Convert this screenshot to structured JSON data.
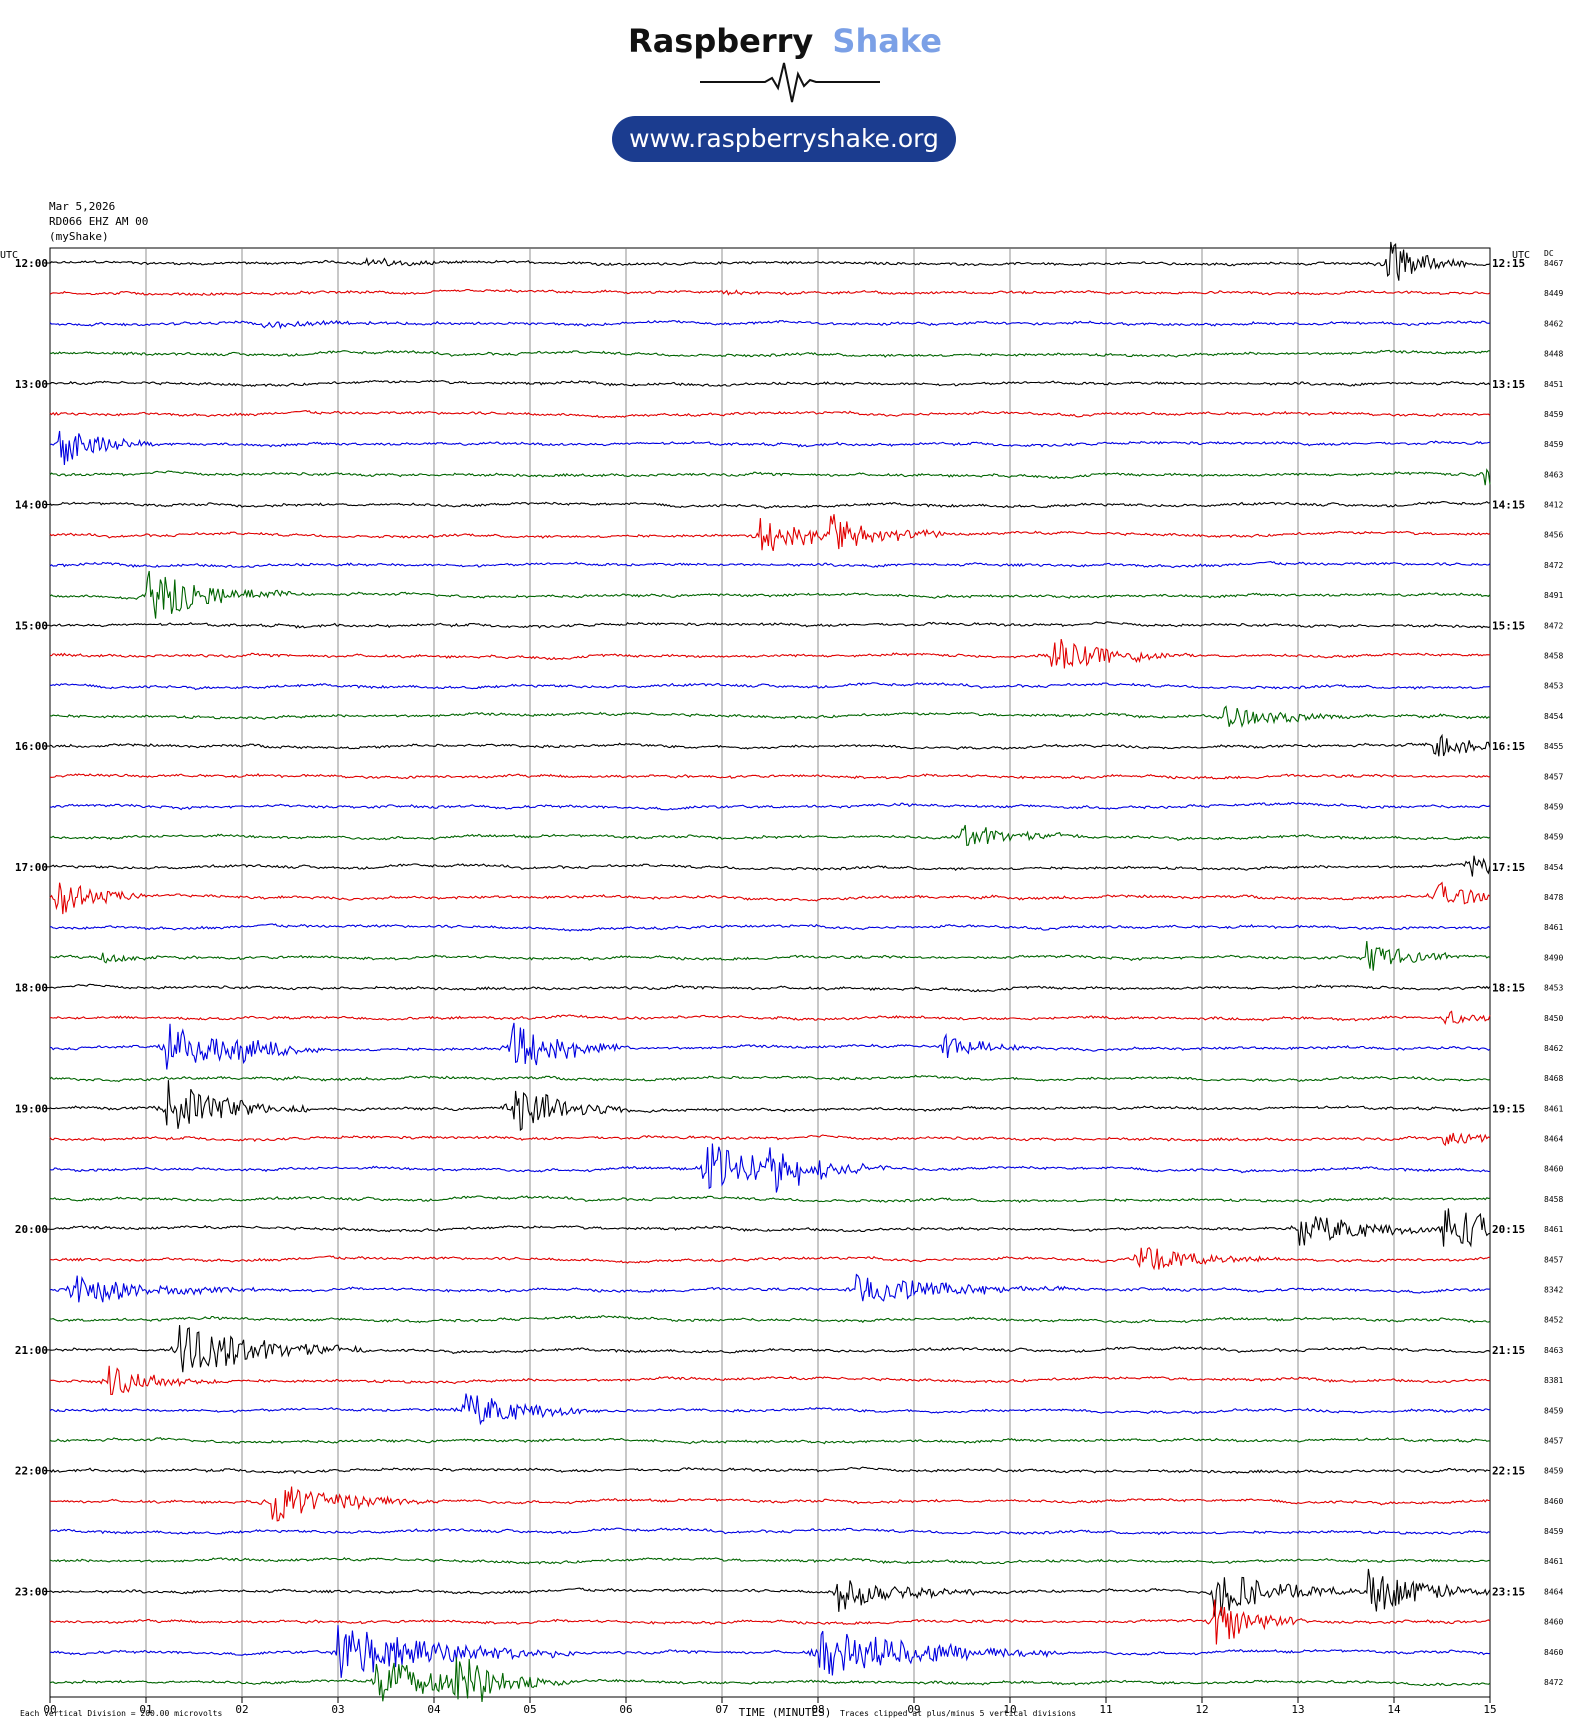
{
  "header": {
    "brand_left": "Raspberry",
    "brand_right": "Shake",
    "url": "www.raspberryshake.org",
    "date": "Mar 5,2026",
    "station": "RD066 EHZ AM 00",
    "network": "(myShake)"
  },
  "colors": {
    "brand_dark": "#111111",
    "brand_light": "#7ba0e6",
    "pill": "#1b3c8f",
    "traces": [
      "#000000",
      "#e00000",
      "#0000e0",
      "#006400"
    ]
  },
  "chart_data": {
    "type": "line",
    "title": "",
    "xlabel": "TIME (MINUTES)",
    "ylabel": "",
    "left_axis_title": "UTC",
    "right_axis_title": "UTC",
    "dc_title": "DC",
    "x_ticks": [
      "00",
      "01",
      "02",
      "03",
      "04",
      "05",
      "06",
      "07",
      "08",
      "09",
      "10",
      "11",
      "12",
      "13",
      "14",
      "15"
    ],
    "xlim": [
      0,
      15
    ],
    "left_hour_labels": [
      "12:00",
      "13:00",
      "14:00",
      "15:00",
      "16:00",
      "17:00",
      "18:00",
      "19:00",
      "20:00",
      "21:00",
      "22:00",
      "23:00"
    ],
    "right_hour_labels": [
      "12:15",
      "13:15",
      "14:15",
      "15:15",
      "16:15",
      "17:15",
      "18:15",
      "19:15",
      "20:15",
      "21:15",
      "22:15",
      "23:15"
    ],
    "dc_offsets": [
      "8467",
      "8449",
      "8462",
      "8448",
      "8451",
      "8459",
      "8459",
      "8463",
      "8412",
      "8456",
      "8472",
      "8491",
      "8472",
      "8458",
      "8453",
      "8454",
      "8455",
      "8457",
      "8459",
      "8459",
      "8454",
      "8478",
      "8461",
      "8490",
      "8453",
      "8450",
      "8462",
      "8468",
      "8461",
      "8464",
      "8460",
      "8458",
      "8461",
      "8457",
      "8342",
      "8452",
      "8463",
      "8381",
      "8459",
      "8457",
      "8459",
      "8460",
      "8459",
      "8461",
      "8464",
      "8460",
      "8460",
      "8472"
    ],
    "footer_left": "Each Vertical Division =  200.00 microvolts",
    "footer_right": "Traces clipped at plus/minus 5 vertical divisions",
    "events": [
      {
        "row": 0,
        "minute": 3.3,
        "amp": 0.8,
        "dur": 0.6
      },
      {
        "row": 0,
        "minute": 13.9,
        "amp": 5,
        "dur": 0.35
      },
      {
        "row": 1,
        "minute": 7.0,
        "amp": 0.5,
        "dur": 0.4
      },
      {
        "row": 2,
        "minute": 2.2,
        "amp": 0.6,
        "dur": 1.0
      },
      {
        "row": 6,
        "minute": 0.1,
        "amp": 4,
        "dur": 0.4
      },
      {
        "row": 7,
        "minute": 14.9,
        "amp": 3,
        "dur": 0.2
      },
      {
        "row": 9,
        "minute": 7.4,
        "amp": 3.5,
        "dur": 0.5
      },
      {
        "row": 9,
        "minute": 8.1,
        "amp": 3.8,
        "dur": 0.5
      },
      {
        "row": 11,
        "minute": 1.0,
        "amp": 5,
        "dur": 0.6
      },
      {
        "row": 13,
        "minute": 10.4,
        "amp": 3.6,
        "dur": 0.6
      },
      {
        "row": 15,
        "minute": 12.2,
        "amp": 2.3,
        "dur": 0.6
      },
      {
        "row": 16,
        "minute": 14.4,
        "amp": 3,
        "dur": 0.4
      },
      {
        "row": 19,
        "minute": 9.5,
        "amp": 2.3,
        "dur": 0.5
      },
      {
        "row": 20,
        "minute": 14.8,
        "amp": 3.5,
        "dur": 0.3
      },
      {
        "row": 21,
        "minute": 0.05,
        "amp": 4,
        "dur": 0.4
      },
      {
        "row": 21,
        "minute": 14.4,
        "amp": 3,
        "dur": 0.4
      },
      {
        "row": 23,
        "minute": 0.5,
        "amp": 1.2,
        "dur": 0.3
      },
      {
        "row": 23,
        "minute": 13.7,
        "amp": 3,
        "dur": 0.4
      },
      {
        "row": 25,
        "minute": 14.5,
        "amp": 1.8,
        "dur": 0.4
      },
      {
        "row": 26,
        "minute": 1.2,
        "amp": 5,
        "dur": 0.6
      },
      {
        "row": 26,
        "minute": 1.9,
        "amp": 2.4,
        "dur": 0.4
      },
      {
        "row": 26,
        "minute": 4.8,
        "amp": 5,
        "dur": 0.5
      },
      {
        "row": 26,
        "minute": 9.3,
        "amp": 2.4,
        "dur": 0.4
      },
      {
        "row": 28,
        "minute": 1.2,
        "amp": 5,
        "dur": 0.6
      },
      {
        "row": 28,
        "minute": 4.8,
        "amp": 5,
        "dur": 0.5
      },
      {
        "row": 29,
        "minute": 14.5,
        "amp": 1.6,
        "dur": 0.5
      },
      {
        "row": 30,
        "minute": 6.8,
        "amp": 5,
        "dur": 0.7
      },
      {
        "row": 30,
        "minute": 7.5,
        "amp": 3.2,
        "dur": 0.5
      },
      {
        "row": 32,
        "minute": 13.0,
        "amp": 3.5,
        "dur": 0.6
      },
      {
        "row": 32,
        "minute": 14.5,
        "amp": 5,
        "dur": 0.6
      },
      {
        "row": 33,
        "minute": 11.3,
        "amp": 2.8,
        "dur": 0.6
      },
      {
        "row": 34,
        "minute": 0.2,
        "amp": 3,
        "dur": 0.8
      },
      {
        "row": 34,
        "minute": 8.4,
        "amp": 3,
        "dur": 0.9
      },
      {
        "row": 36,
        "minute": 1.3,
        "amp": 5,
        "dur": 0.8
      },
      {
        "row": 37,
        "minute": 0.6,
        "amp": 3,
        "dur": 0.5
      },
      {
        "row": 38,
        "minute": 4.3,
        "amp": 3.5,
        "dur": 0.6
      },
      {
        "row": 41,
        "minute": 2.3,
        "amp": 4,
        "dur": 0.7
      },
      {
        "row": 44,
        "minute": 8.2,
        "amp": 3.5,
        "dur": 0.6
      },
      {
        "row": 44,
        "minute": 12.1,
        "amp": 5,
        "dur": 0.6
      },
      {
        "row": 44,
        "minute": 13.7,
        "amp": 4.5,
        "dur": 0.6
      },
      {
        "row": 45,
        "minute": 12.1,
        "amp": 5,
        "dur": 0.4
      },
      {
        "row": 46,
        "minute": 3.0,
        "amp": 5,
        "dur": 1.0
      },
      {
        "row": 46,
        "minute": 8.0,
        "amp": 5,
        "dur": 1.0
      },
      {
        "row": 47,
        "minute": 3.4,
        "amp": 5,
        "dur": 0.6
      },
      {
        "row": 47,
        "minute": 4.2,
        "amp": 5,
        "dur": 0.5
      }
    ]
  }
}
